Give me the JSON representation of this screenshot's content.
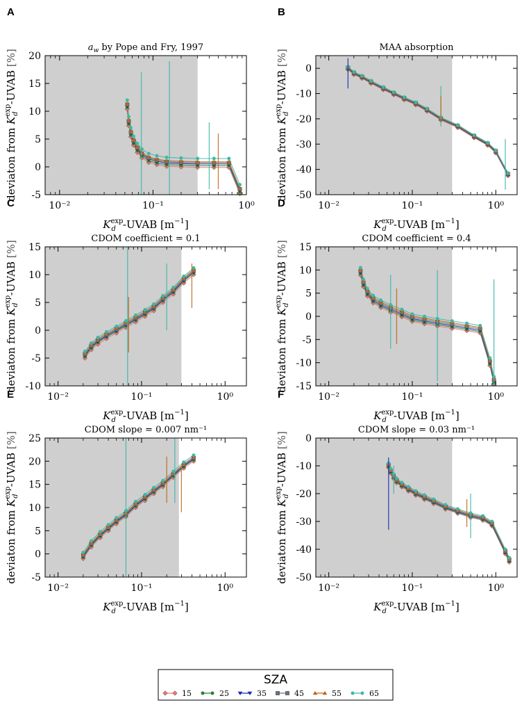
{
  "figure": {
    "legend": {
      "title": "SZA",
      "entries": [
        {
          "label": "15",
          "color": "#e07a7a",
          "marker": "diamond"
        },
        {
          "label": "25",
          "color": "#2e7d32",
          "marker": "circle"
        },
        {
          "label": "35",
          "color": "#1a2bb0",
          "marker": "triangle-down"
        },
        {
          "label": "45",
          "color": "#6b7280",
          "marker": "square"
        },
        {
          "label": "55",
          "color": "#c0651a",
          "marker": "triangle-up"
        },
        {
          "label": "65",
          "color": "#3cb8a8",
          "marker": "circle"
        }
      ]
    },
    "ylabel_text": "deviaton from ",
    "ylabel_K": "K",
    "ylabel_sup": "exp",
    "ylabel_sub": "d",
    "ylabel_suffix": "-UVAB",
    "ylabel_unit": "[%]",
    "xlabel_K": "K",
    "xlabel_sup": "exp",
    "xlabel_sub": "d",
    "xlabel_suffix": "-UVAB [m",
    "xlabel_unit_sup": "−1",
    "xlabel_close": "]"
  },
  "chart_data": [
    {
      "panel": "A",
      "type": "line",
      "title": "a_w by Pope and Fry, 1997",
      "title_prefix_italic": "a",
      "title_prefix_sub": "w",
      "title_rest": " by Pope and Fry, 1997",
      "xscale": "log",
      "xlim": [
        0.007,
        1.0
      ],
      "ylim": [
        -5,
        20
      ],
      "yticks": [
        -5,
        0,
        5,
        10,
        15,
        20
      ],
      "xtick_labels": [
        "10⁻²",
        "10⁻¹",
        "10⁰"
      ],
      "shaded_range": [
        0.007,
        0.3
      ],
      "x": [
        0.053,
        0.055,
        0.058,
        0.062,
        0.068,
        0.076,
        0.09,
        0.11,
        0.14,
        0.2,
        0.3,
        0.45,
        0.65,
        0.85
      ],
      "base": [
        11,
        8,
        6,
        4.5,
        3.2,
        2.2,
        1.4,
        1.0,
        0.7,
        0.6,
        0.5,
        0.5,
        0.5,
        -4.2
      ],
      "offsets": [
        -0.6,
        -0.3,
        0,
        0.2,
        0.4,
        1.0
      ],
      "errors": [
        {
          "series": 5,
          "x": 0.075,
          "y": 5,
          "err": 12
        },
        {
          "series": 5,
          "x": 0.15,
          "y": 5,
          "err": 14
        },
        {
          "series": 5,
          "x": 0.4,
          "y": 2,
          "err": 6
        },
        {
          "series": 4,
          "x": 0.5,
          "y": 1,
          "err": 5
        }
      ]
    },
    {
      "panel": "B",
      "type": "line",
      "title": "MAA absorption",
      "xscale": "log",
      "xlim": [
        0.007,
        1.8
      ],
      "ylim": [
        -50,
        5
      ],
      "yticks": [
        -50,
        -40,
        -30,
        -20,
        -10,
        0
      ],
      "xtick_labels": [
        "10⁻²",
        "10⁻¹",
        "10⁰"
      ],
      "shaded_range": [
        0.007,
        0.3
      ],
      "x": [
        0.017,
        0.02,
        0.025,
        0.032,
        0.045,
        0.06,
        0.08,
        0.11,
        0.15,
        0.22,
        0.35,
        0.55,
        0.8,
        1.0,
        1.4
      ],
      "base": [
        0,
        -2,
        -3.5,
        -5.5,
        -8,
        -10,
        -12,
        -14,
        -16.5,
        -20,
        -23,
        -27,
        -30,
        -33,
        -42
      ],
      "offsets": [
        -0.5,
        -0.2,
        0,
        0.2,
        0.4,
        0.6
      ],
      "errors": [
        {
          "series": 2,
          "x": 0.017,
          "y": -2,
          "err": 6
        },
        {
          "series": 5,
          "x": 0.22,
          "y": -15,
          "err": 8
        },
        {
          "series": 4,
          "x": 0.22,
          "y": -16,
          "err": 5
        },
        {
          "series": 5,
          "x": 1.3,
          "y": -38,
          "err": 10
        }
      ]
    },
    {
      "panel": "C",
      "type": "line",
      "title": "CDOM coefficient = 0.1",
      "xscale": "log",
      "xlim": [
        0.007,
        1.8
      ],
      "ylim": [
        -10,
        15
      ],
      "yticks": [
        -10,
        -5,
        0,
        5,
        10,
        15
      ],
      "xtick_labels": [
        "10⁻²",
        "10⁻¹",
        "10⁰"
      ],
      "shaded_range": [
        0.007,
        0.3
      ],
      "x": [
        0.021,
        0.025,
        0.03,
        0.038,
        0.05,
        0.065,
        0.085,
        0.11,
        0.14,
        0.18,
        0.24,
        0.32,
        0.42
      ],
      "base": [
        -4.5,
        -3,
        -2,
        -1,
        0,
        1,
        2,
        3,
        4,
        5.5,
        7,
        9,
        10.5
      ],
      "offsets": [
        -0.5,
        -0.2,
        0,
        0.2,
        0.4,
        0.7
      ],
      "errors": [
        {
          "series": 5,
          "x": 0.068,
          "y": 2,
          "err": 13
        },
        {
          "series": 4,
          "x": 0.07,
          "y": 1,
          "err": 5
        },
        {
          "series": 5,
          "x": 0.2,
          "y": 6,
          "err": 6
        },
        {
          "series": 4,
          "x": 0.4,
          "y": 8,
          "err": 4
        }
      ]
    },
    {
      "panel": "D",
      "type": "line",
      "title": "CDOM coefficient = 0.4",
      "xscale": "log",
      "xlim": [
        0.007,
        1.8
      ],
      "ylim": [
        -15,
        15
      ],
      "yticks": [
        -15,
        -10,
        -5,
        0,
        5,
        10,
        15
      ],
      "xtick_labels": [
        "10⁻²",
        "10⁻¹",
        "10⁰"
      ],
      "shaded_range": [
        0.007,
        0.3
      ],
      "x": [
        0.024,
        0.026,
        0.029,
        0.034,
        0.042,
        0.055,
        0.075,
        0.1,
        0.14,
        0.2,
        0.3,
        0.45,
        0.65,
        0.85,
        0.95
      ],
      "base": [
        9.5,
        7,
        5,
        3.5,
        2.5,
        1.5,
        0.5,
        -0.5,
        -1,
        -1.5,
        -2,
        -2.5,
        -3,
        -10,
        -14
      ],
      "offsets": [
        -0.6,
        -0.3,
        0,
        0.3,
        0.6,
        1.0
      ],
      "errors": [
        {
          "series": 5,
          "x": 0.055,
          "y": 1,
          "err": 8
        },
        {
          "series": 4,
          "x": 0.065,
          "y": 0,
          "err": 6
        },
        {
          "series": 5,
          "x": 0.2,
          "y": -2,
          "err": 12
        },
        {
          "series": 5,
          "x": 0.95,
          "y": -4,
          "err": 12
        }
      ]
    },
    {
      "panel": "E",
      "type": "line",
      "title": "CDOM slope = 0.007 nm⁻¹",
      "xscale": "log",
      "xlim": [
        0.007,
        1.8
      ],
      "ylim": [
        -5,
        25
      ],
      "yticks": [
        -5,
        0,
        5,
        10,
        15,
        20,
        25
      ],
      "xtick_labels": [
        "10⁻²",
        "10⁻¹",
        "10⁰"
      ],
      "shaded_range": [
        0.007,
        0.28
      ],
      "x": [
        0.02,
        0.025,
        0.032,
        0.04,
        0.05,
        0.065,
        0.085,
        0.11,
        0.14,
        0.18,
        0.24,
        0.32,
        0.42
      ],
      "base": [
        -0.5,
        2,
        4,
        5.5,
        7,
        8.5,
        10.5,
        12,
        13.5,
        15,
        17,
        19,
        20.5
      ],
      "offsets": [
        -0.5,
        -0.2,
        0,
        0.2,
        0.4,
        0.8
      ],
      "errors": [
        {
          "series": 5,
          "x": 0.065,
          "y": 10,
          "err": 15
        },
        {
          "series": 4,
          "x": 0.2,
          "y": 16,
          "err": 5
        },
        {
          "series": 5,
          "x": 0.25,
          "y": 18,
          "err": 7
        },
        {
          "series": 4,
          "x": 0.3,
          "y": 14,
          "err": 5
        }
      ]
    },
    {
      "panel": "F",
      "type": "line",
      "title": "CDOM slope = 0.03 nm⁻¹",
      "xscale": "log",
      "xlim": [
        0.007,
        1.8
      ],
      "ylim": [
        -50,
        0
      ],
      "yticks": [
        -50,
        -40,
        -30,
        -20,
        -10,
        0
      ],
      "xtick_labels": [
        "10⁻²",
        "10⁻¹",
        "10⁰"
      ],
      "shaded_range": [
        0.007,
        0.3
      ],
      "x": [
        0.052,
        0.055,
        0.06,
        0.065,
        0.075,
        0.09,
        0.11,
        0.14,
        0.18,
        0.25,
        0.35,
        0.5,
        0.7,
        0.9,
        1.3,
        1.45
      ],
      "base": [
        -10,
        -12,
        -14,
        -15.5,
        -17,
        -18.5,
        -20,
        -21.5,
        -23,
        -25,
        -26.5,
        -28,
        -29,
        -31,
        -41,
        -44
      ],
      "offsets": [
        -0.6,
        -0.3,
        0,
        0.3,
        0.6,
        1.0
      ],
      "errors": [
        {
          "series": 2,
          "x": 0.052,
          "y": -20,
          "err": 13
        },
        {
          "series": 5,
          "x": 0.06,
          "y": -15,
          "err": 5
        },
        {
          "series": 5,
          "x": 0.5,
          "y": -28,
          "err": 8
        },
        {
          "series": 4,
          "x": 0.45,
          "y": -27,
          "err": 5
        }
      ]
    }
  ]
}
